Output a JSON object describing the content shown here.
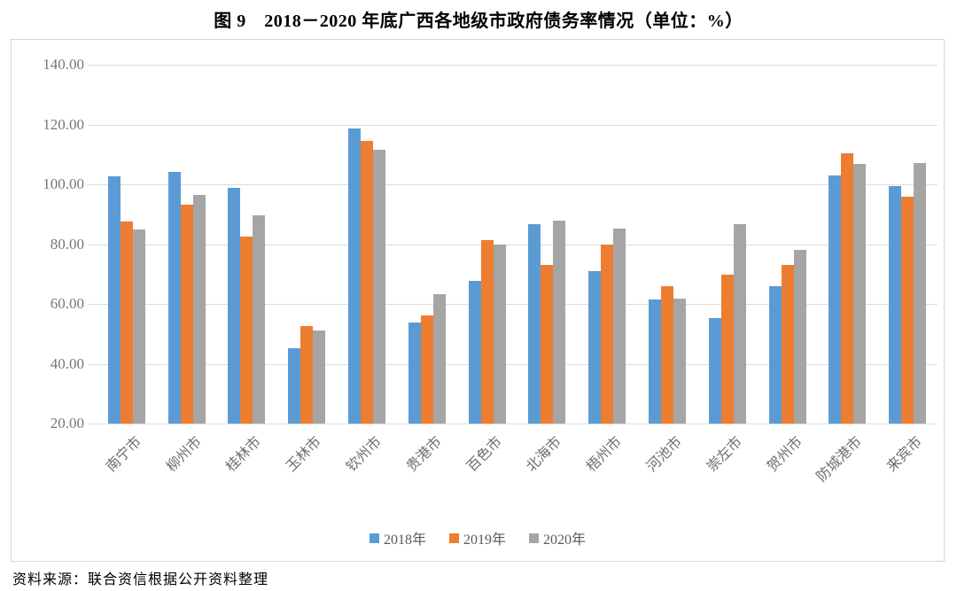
{
  "title": "图 9　2018－2020 年底广西各地级市政府债务率情况（单位：%）",
  "source": "资料来源：联合资信根据公开资料整理",
  "colors": {
    "series_2018": "#5B9BD5",
    "series_2019": "#ED7D31",
    "series_2020": "#A5A5A5",
    "gridline": "#DCDCDC",
    "axis_text": "#767676",
    "chart_border": "#D6D6D6"
  },
  "chart_data": {
    "type": "bar",
    "title": "图 9　2018－2020 年底广西各地级市政府债务率情况（单位：%）",
    "xlabel": "",
    "ylabel": "",
    "ylim": [
      20,
      140
    ],
    "grid": true,
    "legend_position": "bottom",
    "ytick_values": [
      140,
      120,
      100,
      80,
      60,
      40,
      20
    ],
    "ytick_labels": [
      "140.00",
      "120.00",
      "100.00",
      "80.00",
      "60.00",
      "40.00",
      "20.00"
    ],
    "categories": [
      "南宁市",
      "柳州市",
      "桂林市",
      "玉林市",
      "钦州市",
      "贵港市",
      "百色市",
      "北海市",
      "梧州市",
      "河池市",
      "崇左市",
      "贺州市",
      "防城港市",
      "来宾市"
    ],
    "series": [
      {
        "name": "2018年",
        "color": "#5B9BD5",
        "values": [
          102.6,
          104.1,
          98.9,
          45.2,
          118.6,
          53.8,
          67.6,
          86.6,
          71.0,
          61.5,
          55.4,
          65.8,
          103.1,
          99.5
        ]
      },
      {
        "name": "2019年",
        "color": "#ED7D31",
        "values": [
          87.6,
          93.3,
          82.6,
          52.5,
          114.6,
          56.2,
          81.2,
          73.1,
          80.0,
          65.8,
          69.7,
          72.9,
          110.4,
          95.9
        ]
      },
      {
        "name": "2020年",
        "color": "#A5A5A5",
        "values": [
          85.0,
          96.3,
          89.6,
          51.2,
          111.5,
          63.2,
          80.0,
          88.0,
          85.2,
          61.9,
          86.6,
          78.2,
          106.8,
          107.2
        ]
      }
    ]
  }
}
